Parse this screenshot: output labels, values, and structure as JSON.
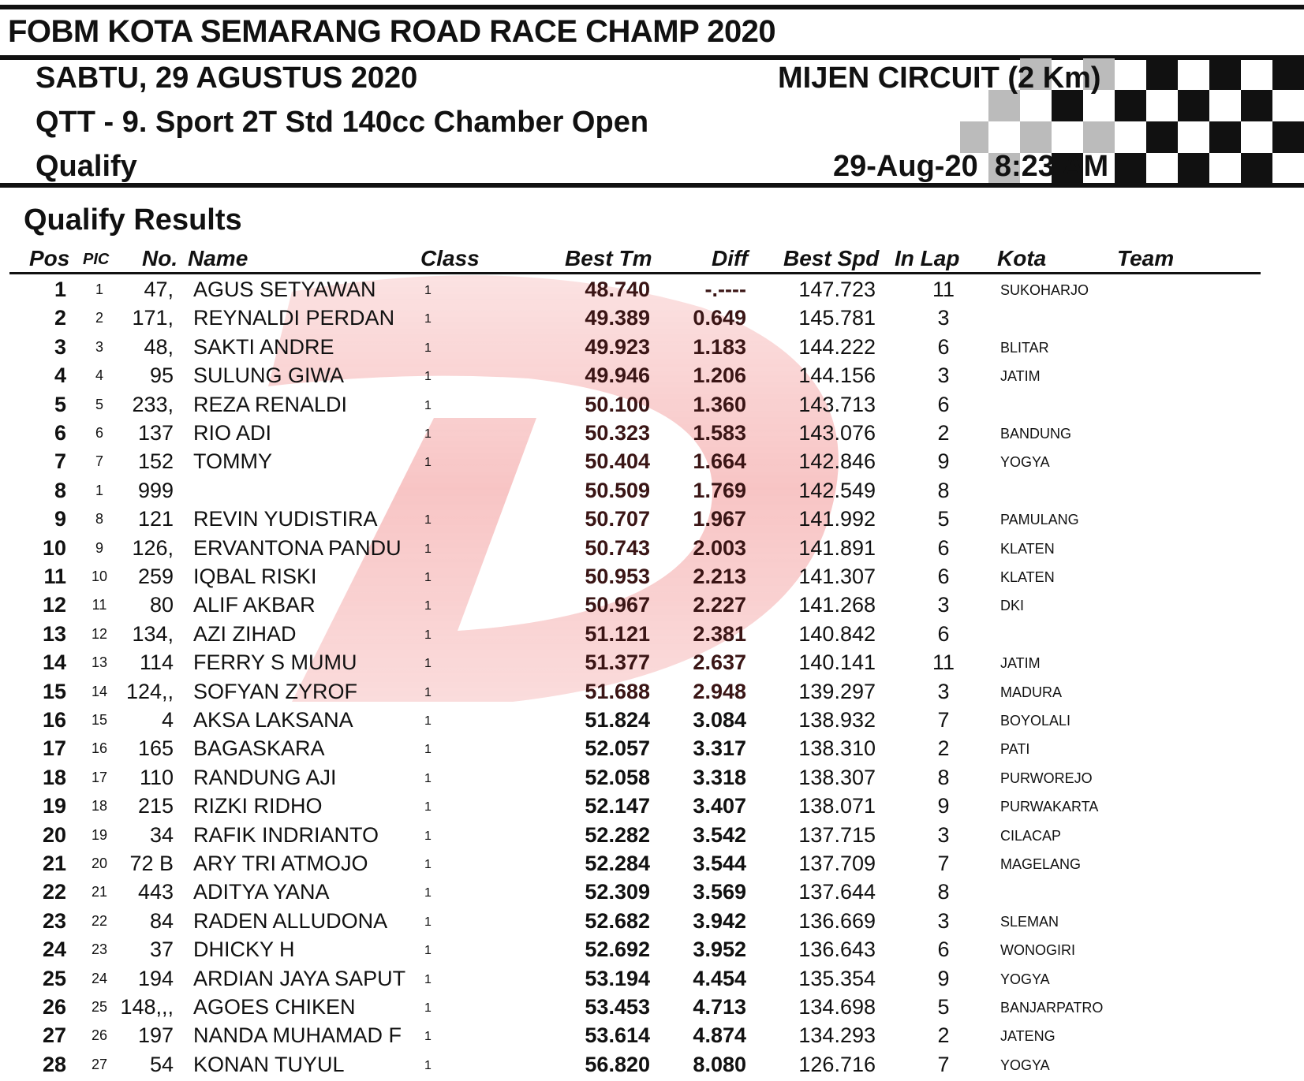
{
  "header": {
    "title": "FOBM KOTA SEMARANG ROAD RACE CHAMP 2020",
    "date": "SABTU, 29 AGUSTUS 2020",
    "circuit": "MIJEN CIRCUIT (2 Km)",
    "event": "QTT - 9. Sport 2T Std 140cc Chamber Open",
    "session": "Qualify",
    "timestamp": "29-Aug-20  8:23 AM"
  },
  "section_title": "Qualify Results",
  "columns": {
    "pos": "Pos",
    "pic": "PIC",
    "no": "No.",
    "name": "Name",
    "class": "Class",
    "best_tm": "Best Tm",
    "diff": "Diff",
    "best_spd": "Best Spd",
    "in_lap": "In Lap",
    "kota": "Kota",
    "team": "Team"
  },
  "rows": [
    [
      "1",
      "1",
      "47,",
      "AGUS SETYAWAN",
      "1",
      "48.740",
      "-.----",
      "147.723",
      "11",
      "SUKOHARJO"
    ],
    [
      "2",
      "2",
      "171,",
      "REYNALDI PERDAN",
      "1",
      "49.389",
      "0.649",
      "145.781",
      "3",
      ""
    ],
    [
      "3",
      "3",
      "48,",
      "SAKTI ANDRE",
      "1",
      "49.923",
      "1.183",
      "144.222",
      "6",
      "BLITAR"
    ],
    [
      "4",
      "4",
      "95",
      "SULUNG GIWA",
      "1",
      "49.946",
      "1.206",
      "144.156",
      "3",
      "JATIM"
    ],
    [
      "5",
      "5",
      "233,",
      "REZA RENALDI",
      "1",
      "50.100",
      "1.360",
      "143.713",
      "6",
      ""
    ],
    [
      "6",
      "6",
      "137",
      "RIO ADI",
      "1",
      "50.323",
      "1.583",
      "143.076",
      "2",
      "BANDUNG"
    ],
    [
      "7",
      "7",
      "152",
      "TOMMY",
      "1",
      "50.404",
      "1.664",
      "142.846",
      "9",
      "YOGYA"
    ],
    [
      "8",
      "1",
      "999",
      "",
      "",
      "50.509",
      "1.769",
      "142.549",
      "8",
      ""
    ],
    [
      "9",
      "8",
      "121",
      "REVIN YUDISTIRA",
      "1",
      "50.707",
      "1.967",
      "141.992",
      "5",
      "PAMULANG"
    ],
    [
      "10",
      "9",
      "126,",
      "ERVANTONA PANDU",
      "1",
      "50.743",
      "2.003",
      "141.891",
      "6",
      "KLATEN"
    ],
    [
      "11",
      "10",
      "259",
      "IQBAL RISKI",
      "1",
      "50.953",
      "2.213",
      "141.307",
      "6",
      "KLATEN"
    ],
    [
      "12",
      "11",
      "80",
      "ALIF AKBAR",
      "1",
      "50.967",
      "2.227",
      "141.268",
      "3",
      "DKI"
    ],
    [
      "13",
      "12",
      "134,",
      "AZI ZIHAD",
      "1",
      "51.121",
      "2.381",
      "140.842",
      "6",
      ""
    ],
    [
      "14",
      "13",
      "114",
      "FERRY S MUMU",
      "1",
      "51.377",
      "2.637",
      "140.141",
      "11",
      "JATIM"
    ],
    [
      "15",
      "14",
      "124,,",
      "SOFYAN ZYROF",
      "1",
      "51.688",
      "2.948",
      "139.297",
      "3",
      "MADURA"
    ],
    [
      "16",
      "15",
      "4",
      "AKSA LAKSANA",
      "1",
      "51.824",
      "3.084",
      "138.932",
      "7",
      "BOYOLALI"
    ],
    [
      "17",
      "16",
      "165",
      "BAGASKARA",
      "1",
      "52.057",
      "3.317",
      "138.310",
      "2",
      "PATI"
    ],
    [
      "18",
      "17",
      "110",
      "RANDUNG AJI",
      "1",
      "52.058",
      "3.318",
      "138.307",
      "8",
      "PURWOREJO"
    ],
    [
      "19",
      "18",
      "215",
      "RIZKI RIDHO",
      "1",
      "52.147",
      "3.407",
      "138.071",
      "9",
      "PURWAKARTA"
    ],
    [
      "20",
      "19",
      "34",
      "RAFIK INDRIANTO",
      "1",
      "52.282",
      "3.542",
      "137.715",
      "3",
      "CILACAP"
    ],
    [
      "21",
      "20",
      "72 B",
      "ARY TRI ATMOJO",
      "1",
      "52.284",
      "3.544",
      "137.709",
      "7",
      "MAGELANG"
    ],
    [
      "22",
      "21",
      "443",
      "ADITYA YANA",
      "1",
      "52.309",
      "3.569",
      "137.644",
      "8",
      ""
    ],
    [
      "23",
      "22",
      "84",
      "RADEN ALLUDONA",
      "1",
      "52.682",
      "3.942",
      "136.669",
      "3",
      "SLEMAN"
    ],
    [
      "24",
      "23",
      "37",
      "DHICKY H",
      "1",
      "52.692",
      "3.952",
      "136.643",
      "6",
      "WONOGIRI"
    ],
    [
      "25",
      "24",
      "194",
      "ARDIAN JAYA SAPUTRA",
      "1",
      "53.194",
      "4.454",
      "135.354",
      "9",
      "YOGYA"
    ],
    [
      "26",
      "25",
      "148,,,",
      "AGOES CHIKEN",
      "1",
      "53.453",
      "4.713",
      "134.698",
      "5",
      "BANJARPATROMAN"
    ],
    [
      "27",
      "26",
      "197",
      "NANDA MUHAMAD F",
      "1",
      "53.614",
      "4.874",
      "134.293",
      "2",
      "JATENG"
    ],
    [
      "28",
      "27",
      "54",
      "KONAN TUYUL",
      "1",
      "56.820",
      "8.080",
      "126.716",
      "7",
      "YOGYA"
    ]
  ],
  "colors": {
    "watermark": "#e53030",
    "text": "#111111",
    "time_text": "#3a1515"
  }
}
